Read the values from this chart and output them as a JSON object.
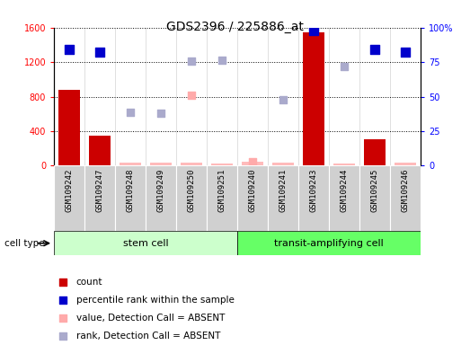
{
  "title": "GDS2396 / 225886_at",
  "samples": [
    "GSM109242",
    "GSM109247",
    "GSM109248",
    "GSM109249",
    "GSM109250",
    "GSM109251",
    "GSM109240",
    "GSM109241",
    "GSM109243",
    "GSM109244",
    "GSM109245",
    "GSM109246"
  ],
  "cell_types": [
    "stem cell",
    "stem cell",
    "stem cell",
    "stem cell",
    "stem cell",
    "stem cell",
    "transit-amplifying cell",
    "transit-amplifying cell",
    "transit-amplifying cell",
    "transit-amplifying cell",
    "transit-amplifying cell",
    "transit-amplifying cell"
  ],
  "bar_color": "#cc0000",
  "bar_color_absent": "#ffbbbb",
  "counts": [
    880,
    350,
    30,
    35,
    30,
    25,
    40,
    30,
    1540,
    20,
    310,
    30
  ],
  "detection_call": [
    "P",
    "P",
    "A",
    "A",
    "A",
    "A",
    "A",
    "A",
    "P",
    "A",
    "P",
    "A"
  ],
  "percentile_ranks": [
    84,
    82,
    null,
    null,
    null,
    null,
    null,
    null,
    98,
    null,
    84,
    82
  ],
  "value_absent": [
    null,
    null,
    null,
    null,
    820,
    null,
    40,
    null,
    null,
    null,
    null,
    null
  ],
  "rank_absent": [
    null,
    null,
    620,
    610,
    1210,
    1220,
    null,
    760,
    null,
    1150,
    null,
    null
  ],
  "ylim_left": [
    0,
    1600
  ],
  "ylim_right": [
    0,
    100
  ],
  "yticks_left": [
    0,
    400,
    800,
    1200,
    1600
  ],
  "ytick_labels_left": [
    "0",
    "400",
    "800",
    "1200",
    "1600"
  ],
  "yticks_right": [
    0,
    25,
    50,
    75,
    100
  ],
  "ytick_labels_right": [
    "0",
    "25",
    "50",
    "75",
    "100%"
  ],
  "bar_width": 0.7,
  "bg_color": "#ffffff",
  "stem_cell_color": "#ccffcc",
  "transit_color": "#66ff66",
  "dot_blue_color": "#0000cc",
  "dot_lavender_color": "#aaaacc",
  "dot_pink_color": "#ffaaaa",
  "dot_size_blue": 50,
  "dot_size_light": 35,
  "title_fontsize": 10,
  "tick_label_fontsize": 7,
  "axis_label_fontsize": 7
}
